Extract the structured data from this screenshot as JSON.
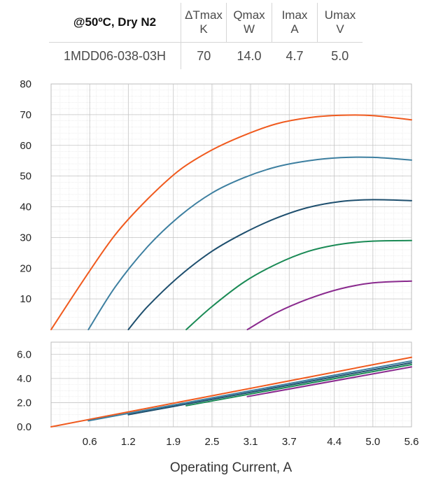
{
  "spec_table": {
    "condition": "@50ºC, Dry N2",
    "columns": [
      {
        "name": "ΔTmax",
        "unit": "K"
      },
      {
        "name": "Qmax",
        "unit": "W"
      },
      {
        "name": "Imax",
        "unit": "A"
      },
      {
        "name": "Umax",
        "unit": "V"
      }
    ],
    "model": "1MDD06-038-03H",
    "values": [
      "70",
      "14.0",
      "4.7",
      "5.0"
    ]
  },
  "chart_data": [
    {
      "type": "line",
      "title": "",
      "xlabel": "Operating Current, A",
      "ylabel": "",
      "xlim": [
        0,
        5.6
      ],
      "ylim": [
        0,
        80
      ],
      "grid": true,
      "x_ticks": [
        "0.6",
        "1.2",
        "1.9",
        "2.5",
        "3.1",
        "3.7",
        "4.4",
        "5.0",
        "5.6"
      ],
      "x_tick_values": [
        0.6,
        1.2,
        1.9,
        2.5,
        3.1,
        3.7,
        4.4,
        5.0,
        5.6
      ],
      "y_ticks": [
        "10",
        "20",
        "30",
        "40",
        "50",
        "60",
        "70",
        "80"
      ],
      "y_tick_values": [
        10,
        20,
        30,
        40,
        50,
        60,
        70,
        80
      ],
      "series": [
        {
          "color": "#f05a1e",
          "x": [
            0,
            0.5,
            1.0,
            1.5,
            2.0,
            2.5,
            3.0,
            3.5,
            4.0,
            4.5,
            5.0,
            5.6
          ],
          "y": [
            0,
            16,
            31,
            42.5,
            52,
            58.5,
            63.3,
            67,
            69,
            69.8,
            69.7,
            68.3
          ]
        },
        {
          "color": "#3d7fa0",
          "x": [
            0.58,
            1.0,
            1.5,
            2.0,
            2.5,
            3.0,
            3.5,
            4.0,
            4.5,
            5.0,
            5.6
          ],
          "y": [
            0,
            14,
            27,
            37,
            44.5,
            49.5,
            53,
            55,
            56,
            56.1,
            55.2
          ]
        },
        {
          "color": "#1e4f6e",
          "x": [
            1.2,
            1.5,
            2.0,
            2.5,
            3.0,
            3.5,
            4.0,
            4.5,
            5.0,
            5.6
          ],
          "y": [
            0,
            7.5,
            17.5,
            25.5,
            31.5,
            36.3,
            39.8,
            41.7,
            42.3,
            42
          ]
        },
        {
          "color": "#1a8a55",
          "x": [
            2.1,
            2.5,
            3.0,
            3.5,
            4.0,
            4.5,
            5.0,
            5.6
          ],
          "y": [
            0,
            7.5,
            15.5,
            21.3,
            25.5,
            27.8,
            28.8,
            29
          ]
        },
        {
          "color": "#8a2a8e",
          "x": [
            3.05,
            3.5,
            4.0,
            4.5,
            5.0,
            5.6
          ],
          "y": [
            0,
            5.5,
            10,
            13.3,
            15.2,
            15.8
          ]
        }
      ]
    },
    {
      "type": "line",
      "title": "",
      "xlabel": "Operating Current, A",
      "ylabel": "",
      "xlim": [
        0,
        5.6
      ],
      "ylim": [
        0,
        7
      ],
      "grid": true,
      "x_ticks": [
        "0.6",
        "1.2",
        "1.9",
        "2.5",
        "3.1",
        "3.7",
        "4.4",
        "5.0",
        "5.6"
      ],
      "x_tick_values": [
        0.6,
        1.2,
        1.9,
        2.5,
        3.1,
        3.7,
        4.4,
        5.0,
        5.6
      ],
      "y_ticks": [
        "0.0",
        "2.0",
        "4.0",
        "6.0"
      ],
      "y_tick_values": [
        0,
        2,
        4,
        6
      ],
      "series": [
        {
          "color": "#f05a1e",
          "x": [
            0,
            5.6
          ],
          "y": [
            0,
            5.75
          ]
        },
        {
          "color": "#3d7fa0",
          "x": [
            0.58,
            5.6
          ],
          "y": [
            0.5,
            5.45
          ]
        },
        {
          "color": "#1e4f6e",
          "x": [
            1.2,
            5.6
          ],
          "y": [
            1.0,
            5.3
          ]
        },
        {
          "color": "#1a8a55",
          "x": [
            2.1,
            5.6
          ],
          "y": [
            1.75,
            5.15
          ]
        },
        {
          "color": "#8a2a8e",
          "x": [
            3.05,
            5.6
          ],
          "y": [
            2.5,
            4.95
          ]
        }
      ]
    }
  ]
}
